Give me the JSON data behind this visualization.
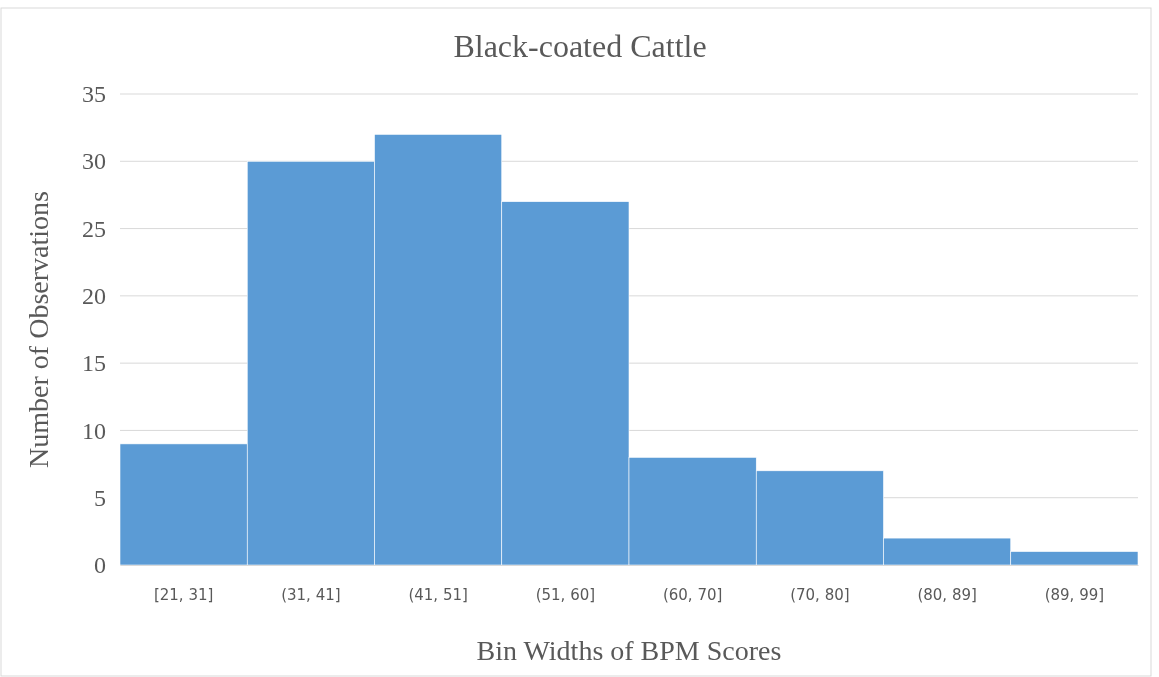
{
  "chart_data": {
    "type": "bar",
    "title": "Black-coated Cattle",
    "xlabel": "Bin Widths of BPM Scores",
    "ylabel": "Number of Observations",
    "categories": [
      "[21, 31]",
      "(31, 41]",
      "(41, 51]",
      "(51, 60]",
      "(60, 70]",
      "(70, 80]",
      "(80, 89]",
      "(89, 99]"
    ],
    "values": [
      9,
      30,
      32,
      27,
      8,
      7,
      2,
      1
    ],
    "color": "#5b9bd5",
    "ylim": [
      0,
      35
    ],
    "yticks": [
      0,
      5,
      10,
      15,
      20,
      25,
      30,
      35
    ],
    "grid": "y"
  }
}
